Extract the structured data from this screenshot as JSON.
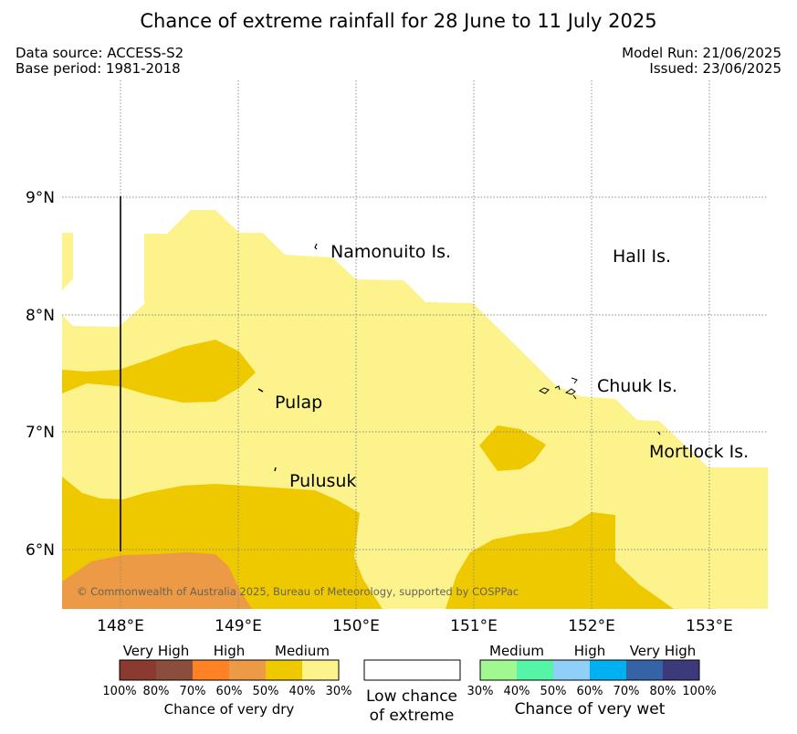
{
  "title": "Chance of extreme rainfall for 28 June to 11 July 2025",
  "meta": {
    "data_source": "Data source: ACCESS-S2",
    "base_period": "Base period: 1981-2018",
    "model_run": "Model Run: 21/06/2025",
    "issued": "Issued: 23/06/2025"
  },
  "map": {
    "lon_labels": [
      "148°E",
      "149°E",
      "150°E",
      "151°E",
      "152°E",
      "153°E"
    ],
    "lat_labels": [
      "9°N",
      "8°N",
      "7°N",
      "6°N"
    ],
    "place_labels": [
      "Namonuito Is.",
      "Hall Is.",
      "Pulap",
      "Chuuk Is.",
      "Mortlock Is.",
      "Pulusuk"
    ],
    "copyright": "© Commonwealth of Australia 2025, Bureau of Meteorology, supported by COSPPac",
    "colors": {
      "dry_30_40": "#fcf38c",
      "dry_40_50": "#eec900",
      "dry_50_60": "#ec9a45",
      "grid": "#888888"
    }
  },
  "legend": {
    "dry": {
      "categories": [
        "Very High",
        "High",
        "Medium"
      ],
      "ticks": [
        "100%",
        "80%",
        "70%",
        "60%",
        "50%",
        "40%",
        "30%"
      ],
      "colors": [
        "#8b3a32",
        "#8b4e3c",
        "#ff8225",
        "#ec9a45",
        "#eec900",
        "#fcf38c"
      ],
      "label": "Chance of very dry"
    },
    "low": {
      "label_line1": "Low chance",
      "label_line2": "of extreme"
    },
    "wet": {
      "categories": [
        "Medium",
        "High",
        "Very High"
      ],
      "ticks": [
        "30%",
        "40%",
        "50%",
        "60%",
        "70%",
        "80%",
        "100%"
      ],
      "colors": [
        "#a0f890",
        "#55f5a8",
        "#8ed0f8",
        "#00b0f0",
        "#3463a6",
        "#3c3a7a"
      ],
      "label": "Chance of very wet"
    }
  }
}
